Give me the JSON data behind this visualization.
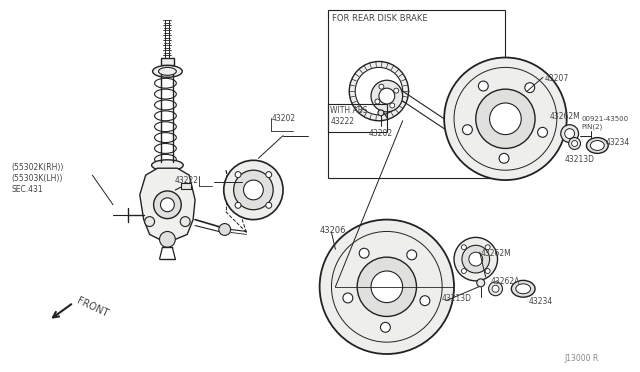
{
  "bg_color": "#ffffff",
  "line_color": "#222222",
  "text_color": "#444444",
  "diagram_note": "FOR REAR DISK BRAKE",
  "watermark": "J13000 R",
  "labels": {
    "55302K_RH": "(55302K(RH))",
    "55303K_LH": "(55303K(LH))",
    "sec431": "SEC.431",
    "front": "FRONT",
    "43202_a": "43202",
    "43222_a": "43222",
    "43206": "43206",
    "43202_b": "43202",
    "43222_b": "43222",
    "with_abs": "WITH ABS",
    "43207": "43207",
    "43262M_a": "43262M",
    "pin_label_1": "00921-43500",
    "pin_label_2": "PIN(2)",
    "43213D_a": "43213D",
    "43234_a": "43234",
    "43262M_b": "43262M",
    "43262A": "43262A",
    "43213D_b": "43213D",
    "43234_b": "43234"
  }
}
